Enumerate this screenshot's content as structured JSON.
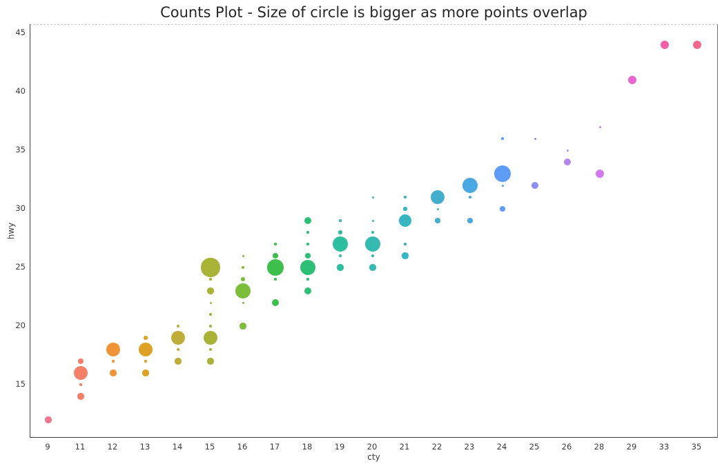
{
  "chart_data": {
    "type": "scatter",
    "subtype": "counts-bubble-stripplot",
    "title": "Counts Plot - Size of circle is bigger as more points overlap",
    "xlabel": "cty",
    "ylabel": "hwy",
    "x_categories": [
      9,
      11,
      12,
      13,
      14,
      15,
      16,
      17,
      18,
      19,
      20,
      21,
      22,
      23,
      24,
      25,
      26,
      28,
      29,
      33,
      35
    ],
    "y_ticks": [
      15,
      20,
      25,
      30,
      35,
      40,
      45
    ],
    "ylim": [
      10.4,
      45.7
    ],
    "grid": false,
    "legend": "none",
    "size_note": "bubble diameter proportional to count of overlapping points",
    "series": [
      {
        "cty": 9,
        "color": "#f0758f",
        "points": [
          {
            "hwy": 12,
            "count": 5
          }
        ]
      },
      {
        "cty": 11,
        "color": "#f4806a",
        "points": [
          {
            "hwy": 14,
            "count": 5
          },
          {
            "hwy": 15,
            "count": 2
          },
          {
            "hwy": 16,
            "count": 11
          },
          {
            "hwy": 17,
            "count": 4
          }
        ]
      },
      {
        "cty": 12,
        "color": "#f0943a",
        "points": [
          {
            "hwy": 16,
            "count": 5
          },
          {
            "hwy": 17,
            "count": 2
          },
          {
            "hwy": 18,
            "count": 11
          }
        ]
      },
      {
        "cty": 13,
        "color": "#dda126",
        "points": [
          {
            "hwy": 16,
            "count": 5
          },
          {
            "hwy": 17,
            "count": 2
          },
          {
            "hwy": 18,
            "count": 11
          },
          {
            "hwy": 19,
            "count": 3
          }
        ]
      },
      {
        "cty": 14,
        "color": "#c0ad39",
        "points": [
          {
            "hwy": 17,
            "count": 5
          },
          {
            "hwy": 18,
            "count": 2
          },
          {
            "hwy": 19,
            "count": 11
          },
          {
            "hwy": 20,
            "count": 2
          }
        ]
      },
      {
        "cty": 15,
        "color": "#a9b338",
        "points": [
          {
            "hwy": 17,
            "count": 5
          },
          {
            "hwy": 18,
            "count": 2
          },
          {
            "hwy": 19,
            "count": 11
          },
          {
            "hwy": 20,
            "count": 2
          },
          {
            "hwy": 21,
            "count": 2
          },
          {
            "hwy": 22,
            "count": 1
          },
          {
            "hwy": 23,
            "count": 5
          },
          {
            "hwy": 24,
            "count": 2
          },
          {
            "hwy": 25,
            "count": 15
          }
        ]
      },
      {
        "cty": 16,
        "color": "#7cbe3a",
        "points": [
          {
            "hwy": 20,
            "count": 5
          },
          {
            "hwy": 22,
            "count": 1
          },
          {
            "hwy": 23,
            "count": 12
          },
          {
            "hwy": 24,
            "count": 3
          },
          {
            "hwy": 25,
            "count": 2
          },
          {
            "hwy": 26,
            "count": 1
          }
        ]
      },
      {
        "cty": 17,
        "color": "#3cc04b",
        "points": [
          {
            "hwy": 22,
            "count": 6
          },
          {
            "hwy": 24,
            "count": 2
          },
          {
            "hwy": 25,
            "count": 13
          },
          {
            "hwy": 26,
            "count": 4
          },
          {
            "hwy": 27,
            "count": 2
          }
        ]
      },
      {
        "cty": 18,
        "color": "#2dbf76",
        "points": [
          {
            "hwy": 23,
            "count": 6
          },
          {
            "hwy": 24,
            "count": 2
          },
          {
            "hwy": 25,
            "count": 12
          },
          {
            "hwy": 26,
            "count": 4
          },
          {
            "hwy": 27,
            "count": 2
          },
          {
            "hwy": 28,
            "count": 2
          },
          {
            "hwy": 29,
            "count": 6
          }
        ]
      },
      {
        "cty": 19,
        "color": "#2dbd9f",
        "points": [
          {
            "hwy": 25,
            "count": 5
          },
          {
            "hwy": 26,
            "count": 2
          },
          {
            "hwy": 27,
            "count": 12
          },
          {
            "hwy": 28,
            "count": 3
          },
          {
            "hwy": 29,
            "count": 2
          }
        ]
      },
      {
        "cty": 20,
        "color": "#35bab1",
        "points": [
          {
            "hwy": 25,
            "count": 5
          },
          {
            "hwy": 26,
            "count": 2
          },
          {
            "hwy": 27,
            "count": 12
          },
          {
            "hwy": 28,
            "count": 2
          },
          {
            "hwy": 29,
            "count": 1
          },
          {
            "hwy": 31,
            "count": 1
          }
        ]
      },
      {
        "cty": 21,
        "color": "#37b6c2",
        "points": [
          {
            "hwy": 26,
            "count": 5
          },
          {
            "hwy": 27,
            "count": 2
          },
          {
            "hwy": 29,
            "count": 10
          },
          {
            "hwy": 30,
            "count": 3
          },
          {
            "hwy": 31,
            "count": 2
          }
        ]
      },
      {
        "cty": 22,
        "color": "#44afcd",
        "points": [
          {
            "hwy": 29,
            "count": 4
          },
          {
            "hwy": 30,
            "count": 1
          },
          {
            "hwy": 31,
            "count": 11
          }
        ]
      },
      {
        "cty": 23,
        "color": "#4aa8e2",
        "points": [
          {
            "hwy": 29,
            "count": 4
          },
          {
            "hwy": 31,
            "count": 2
          },
          {
            "hwy": 32,
            "count": 12
          }
        ]
      },
      {
        "cty": 24,
        "color": "#5e9cf6",
        "points": [
          {
            "hwy": 30,
            "count": 4
          },
          {
            "hwy": 32,
            "count": 1
          },
          {
            "hwy": 33,
            "count": 13
          },
          {
            "hwy": 36,
            "count": 2
          }
        ]
      },
      {
        "cty": 25,
        "color": "#8b90ee",
        "points": [
          {
            "hwy": 32,
            "count": 6
          },
          {
            "hwy": 36,
            "count": 1
          }
        ]
      },
      {
        "cty": 26,
        "color": "#b288f0",
        "points": [
          {
            "hwy": 34,
            "count": 6
          },
          {
            "hwy": 35,
            "count": 1
          }
        ]
      },
      {
        "cty": 28,
        "color": "#d179ed",
        "points": [
          {
            "hwy": 33,
            "count": 7
          },
          {
            "hwy": 37,
            "count": 1
          }
        ]
      },
      {
        "cty": 29,
        "color": "#e965d2",
        "points": [
          {
            "hwy": 41,
            "count": 7
          }
        ]
      },
      {
        "cty": 33,
        "color": "#f25fa9",
        "points": [
          {
            "hwy": 44,
            "count": 7
          }
        ]
      },
      {
        "cty": 35,
        "color": "#f2678f",
        "points": [
          {
            "hwy": 44,
            "count": 7
          }
        ]
      }
    ]
  }
}
